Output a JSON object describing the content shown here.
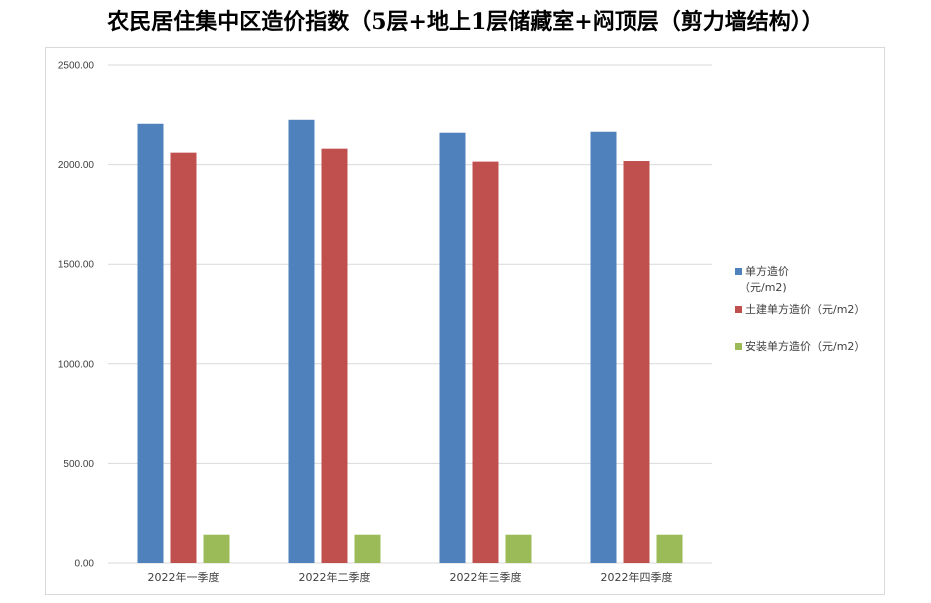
{
  "page": {
    "title": "农民居住集中区造价指数（5层+地上1层储藏室+闷顶层（剪力墙结构））"
  },
  "chart_data": {
    "type": "bar",
    "title": "",
    "xlabel": "",
    "ylabel": "",
    "ylim": [
      0,
      2500
    ],
    "yticks": [
      0,
      500,
      1000,
      1500,
      2000,
      2500
    ],
    "ytick_labels": [
      "0.00",
      "500.00",
      "1000.00",
      "1500.00",
      "2000.00",
      "2500.00"
    ],
    "grid": true,
    "legend_position": "right",
    "categories": [
      "2022年一季度",
      "2022年二季度",
      "2022年三季度",
      "2022年四季度"
    ],
    "series": [
      {
        "name": "单方造价（元/m2)",
        "legend_lines": [
          "单方造价",
          "（元/m2)"
        ],
        "color": "#4f81bd",
        "values": [
          2205,
          2225,
          2160,
          2165
        ]
      },
      {
        "name": "土建单方造价（元/m2）",
        "legend_lines": [
          "土建单方造价（元/m2）"
        ],
        "color": "#c0504d",
        "values": [
          2060,
          2080,
          2015,
          2018
        ]
      },
      {
        "name": "安装单方造价（元/m2）",
        "legend_lines": [
          "安装单方造价（元/m2）"
        ],
        "color": "#9bbb59",
        "values": [
          142,
          142,
          142,
          142
        ]
      }
    ]
  }
}
